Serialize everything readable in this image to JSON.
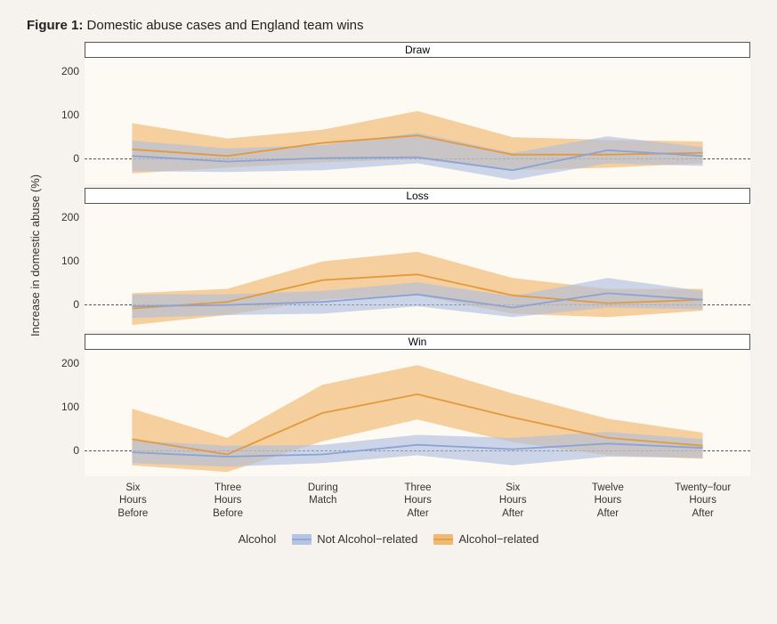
{
  "figure_label": "Figure 1:",
  "figure_title": "Domestic abuse cases and England team wins",
  "y_axis_label": "Increase in domestic abuse (%)",
  "legend": {
    "title": "Alcohol",
    "items": [
      {
        "key": "not_alc",
        "label": "Not Alcohol−related"
      },
      {
        "key": "alc",
        "label": "Alcohol−related"
      }
    ]
  },
  "colors": {
    "not_alc_line": "#8aa3d4",
    "not_alc_fill": "#aebfdf",
    "alc_line": "#e39a3e",
    "alc_fill": "#f0b469",
    "fill_opacity": 0.62,
    "panel_bg": "#fdfaf4",
    "page_bg": "#f6f3ee",
    "zero_line": "#555555",
    "header_border": "#555555",
    "text": "#333333"
  },
  "x_categories": [
    "Six\nHours\nBefore",
    "Three\nHours\nBefore",
    "During\nMatch",
    "Three\nHours\nAfter",
    "Six\nHours\nAfter",
    "Twelve\nHours\nAfter",
    "Twenty−four\nHours\nAfter"
  ],
  "y_ticks": [
    0,
    100,
    200
  ],
  "y_domain": [
    -60,
    230
  ],
  "line_width": 1.8,
  "tick_fontsize": 12,
  "label_fontsize": 13,
  "title_fontsize": 15,
  "panels": [
    {
      "title": "Draw",
      "series": {
        "not_alc": {
          "mean": [
            5,
            -8,
            0,
            2,
            -28,
            18,
            5
          ],
          "lower": [
            -30,
            -32,
            -28,
            -12,
            -50,
            -12,
            -18
          ],
          "upper": [
            40,
            22,
            30,
            58,
            12,
            50,
            25
          ]
        },
        "alc": {
          "mean": [
            20,
            5,
            35,
            52,
            8,
            8,
            12
          ],
          "lower": [
            -35,
            -22,
            -10,
            -2,
            -28,
            -22,
            -12
          ],
          "upper": [
            80,
            45,
            65,
            108,
            48,
            42,
            38
          ]
        }
      }
    },
    {
      "title": "Loss",
      "series": {
        "not_alc": {
          "mean": [
            -5,
            -2,
            5,
            22,
            -8,
            25,
            10
          ],
          "lower": [
            -32,
            -25,
            -22,
            -5,
            -30,
            -8,
            -12
          ],
          "upper": [
            22,
            22,
            30,
            50,
            18,
            60,
            30
          ]
        },
        "alc": {
          "mean": [
            -10,
            5,
            55,
            68,
            20,
            2,
            10
          ],
          "lower": [
            -48,
            -25,
            10,
            20,
            -22,
            -30,
            -15
          ],
          "upper": [
            25,
            35,
            98,
            120,
            60,
            35,
            35
          ]
        }
      }
    },
    {
      "title": "Win",
      "series": {
        "not_alc": {
          "mean": [
            -5,
            -15,
            -10,
            12,
            2,
            15,
            5
          ],
          "lower": [
            -30,
            -38,
            -30,
            -12,
            -35,
            -15,
            -18
          ],
          "upper": [
            22,
            10,
            12,
            35,
            28,
            42,
            25
          ]
        },
        "alc": {
          "mean": [
            25,
            -10,
            85,
            128,
            75,
            28,
            10
          ],
          "lower": [
            -35,
            -50,
            20,
            70,
            18,
            -12,
            -20
          ],
          "upper": [
            95,
            28,
            150,
            195,
            130,
            72,
            40
          ]
        }
      }
    }
  ]
}
